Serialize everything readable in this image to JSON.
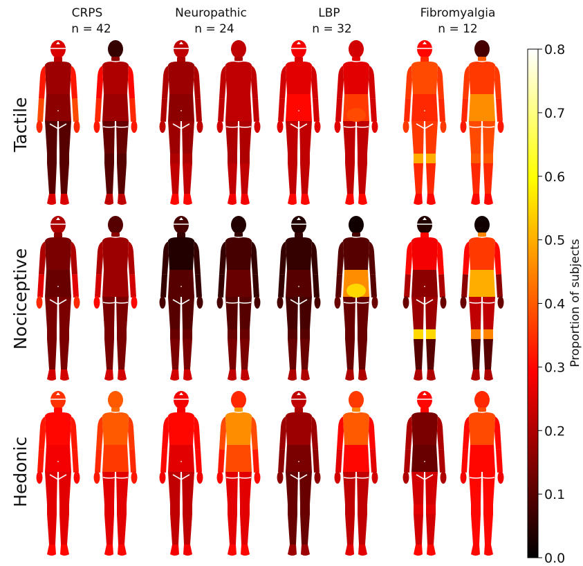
{
  "chart_data": {
    "type": "heatmap",
    "columns": [
      {
        "name": "CRPS",
        "n_label": "n = 42"
      },
      {
        "name": "Neuropathic",
        "n_label": "n = 24"
      },
      {
        "name": "LBP",
        "n_label": "n = 32"
      },
      {
        "name": "Fibromyalgia",
        "n_label": "n = 12"
      }
    ],
    "rows": [
      "Tactile",
      "Nociceptive",
      "Hedonic"
    ],
    "views": [
      "front",
      "back"
    ],
    "regions": [
      "head",
      "neck",
      "upper_torso",
      "lower_torso",
      "upper_arm",
      "forearm",
      "hand",
      "thigh",
      "knee",
      "shin",
      "foot"
    ],
    "maps": {
      "Tactile": {
        "CRPS": {
          "front": {
            "head": 0.25,
            "neck": 0.22,
            "upper_torso": 0.18,
            "lower_torso": 0.16,
            "upper_arm": 0.32,
            "forearm": 0.38,
            "hand": 0.34,
            "thigh": 0.1,
            "knee": 0.1,
            "shin": 0.1,
            "foot": 0.25
          },
          "back": {
            "head": 0.06,
            "neck": 0.16,
            "upper_torso": 0.2,
            "lower_torso": 0.18,
            "upper_arm": 0.3,
            "forearm": 0.34,
            "hand": 0.32,
            "thigh": 0.12,
            "knee": 0.1,
            "shin": 0.1,
            "foot": 0.22
          }
        },
        "Neuropathic": {
          "front": {
            "head": 0.22,
            "neck": 0.2,
            "upper_torso": 0.18,
            "lower_torso": 0.16,
            "upper_arm": 0.2,
            "forearm": 0.2,
            "hand": 0.22,
            "thigh": 0.18,
            "knee": 0.2,
            "shin": 0.22,
            "foot": 0.3
          },
          "back": {
            "head": 0.22,
            "neck": 0.2,
            "upper_torso": 0.22,
            "lower_torso": 0.22,
            "upper_arm": 0.22,
            "forearm": 0.22,
            "hand": 0.24,
            "thigh": 0.2,
            "knee": 0.2,
            "shin": 0.22,
            "foot": 0.28
          }
        },
        "LBP": {
          "front": {
            "head": 0.28,
            "neck": 0.25,
            "upper_torso": 0.26,
            "lower_torso": 0.3,
            "upper_arm": 0.24,
            "forearm": 0.24,
            "hand": 0.26,
            "thigh": 0.22,
            "knee": 0.22,
            "shin": 0.22,
            "foot": 0.3
          },
          "back": {
            "head": 0.24,
            "neck": 0.26,
            "upper_torso": 0.26,
            "lower_torso": 0.36,
            "upper_arm": 0.24,
            "forearm": 0.24,
            "hand": 0.26,
            "thigh": 0.22,
            "knee": 0.22,
            "shin": 0.22,
            "foot": 0.3
          },
          "back_spot": {
            "lower_torso": 0.38
          }
        },
        "Fibromyalgia": {
          "front": {
            "head": 0.3,
            "neck": 0.34,
            "upper_torso": 0.38,
            "lower_torso": 0.34,
            "upper_arm": 0.36,
            "forearm": 0.34,
            "hand": 0.36,
            "thigh": 0.36,
            "knee": 0.5,
            "shin": 0.34,
            "foot": 0.3
          },
          "back": {
            "head": 0.08,
            "neck": 0.4,
            "upper_torso": 0.36,
            "lower_torso": 0.46,
            "upper_arm": 0.36,
            "forearm": 0.34,
            "hand": 0.32,
            "thigh": 0.38,
            "knee": 0.4,
            "shin": 0.34,
            "foot": 0.3
          }
        }
      },
      "Nociceptive": {
        "CRPS": {
          "front": {
            "head": 0.2,
            "neck": 0.16,
            "upper_torso": 0.14,
            "lower_torso": 0.12,
            "upper_arm": 0.2,
            "forearm": 0.26,
            "hand": 0.34,
            "thigh": 0.14,
            "knee": 0.14,
            "shin": 0.14,
            "foot": 0.24
          },
          "back": {
            "head": 0.1,
            "neck": 0.16,
            "upper_torso": 0.18,
            "lower_torso": 0.18,
            "upper_arm": 0.2,
            "forearm": 0.24,
            "hand": 0.3,
            "thigh": 0.14,
            "knee": 0.14,
            "shin": 0.14,
            "foot": 0.24
          }
        },
        "Neuropathic": {
          "front": {
            "head": 0.08,
            "neck": 0.06,
            "upper_torso": 0.04,
            "lower_torso": 0.1,
            "upper_arm": 0.06,
            "forearm": 0.06,
            "hand": 0.08,
            "thigh": 0.1,
            "knee": 0.12,
            "shin": 0.14,
            "foot": 0.24
          },
          "back": {
            "head": 0.04,
            "neck": 0.06,
            "upper_torso": 0.08,
            "lower_torso": 0.12,
            "upper_arm": 0.06,
            "forearm": 0.06,
            "hand": 0.08,
            "thigh": 0.1,
            "knee": 0.12,
            "shin": 0.14,
            "foot": 0.22
          }
        },
        "LBP": {
          "front": {
            "head": 0.04,
            "neck": 0.06,
            "upper_torso": 0.06,
            "lower_torso": 0.1,
            "upper_arm": 0.06,
            "forearm": 0.06,
            "hand": 0.08,
            "thigh": 0.08,
            "knee": 0.1,
            "shin": 0.12,
            "foot": 0.2
          },
          "back": {
            "head": 0.02,
            "neck": 0.08,
            "upper_torso": 0.1,
            "lower_torso": 0.46,
            "upper_arm": 0.1,
            "forearm": 0.1,
            "hand": 0.12,
            "thigh": 0.12,
            "knee": 0.12,
            "shin": 0.12,
            "foot": 0.2
          },
          "back_spot": {
            "lower_torso": 0.55
          }
        },
        "Fibromyalgia": {
          "front": {
            "head": 0.04,
            "neck": 0.3,
            "upper_torso": 0.28,
            "lower_torso": 0.16,
            "upper_arm": 0.3,
            "forearm": 0.2,
            "hand": 0.12,
            "thigh": 0.18,
            "knee": 0.55,
            "shin": 0.1,
            "foot": 0.2
          },
          "back": {
            "head": 0.02,
            "neck": 0.45,
            "upper_torso": 0.36,
            "lower_torso": 0.5,
            "upper_arm": 0.3,
            "forearm": 0.16,
            "hand": 0.12,
            "thigh": 0.22,
            "knee": 0.45,
            "shin": 0.1,
            "foot": 0.2
          }
        }
      },
      "Hedonic": {
        "CRPS": {
          "front": {
            "head": 0.35,
            "neck": 0.3,
            "upper_torso": 0.3,
            "lower_torso": 0.28,
            "upper_arm": 0.32,
            "forearm": 0.32,
            "hand": 0.3,
            "thigh": 0.26,
            "knee": 0.26,
            "shin": 0.26,
            "foot": 0.3
          },
          "back": {
            "head": 0.4,
            "neck": 0.42,
            "upper_torso": 0.4,
            "lower_torso": 0.36,
            "upper_arm": 0.36,
            "forearm": 0.34,
            "hand": 0.32,
            "thigh": 0.26,
            "knee": 0.26,
            "shin": 0.26,
            "foot": 0.3
          }
        },
        "Neuropathic": {
          "front": {
            "head": 0.28,
            "neck": 0.28,
            "upper_torso": 0.3,
            "lower_torso": 0.26,
            "upper_arm": 0.3,
            "forearm": 0.3,
            "hand": 0.28,
            "thigh": 0.22,
            "knee": 0.22,
            "shin": 0.22,
            "foot": 0.28
          },
          "back": {
            "head": 0.34,
            "neck": 0.48,
            "upper_torso": 0.46,
            "lower_torso": 0.38,
            "upper_arm": 0.38,
            "forearm": 0.32,
            "hand": 0.3,
            "thigh": 0.26,
            "knee": 0.26,
            "shin": 0.26,
            "foot": 0.3
          }
        },
        "LBP": {
          "front": {
            "head": 0.22,
            "neck": 0.2,
            "upper_torso": 0.18,
            "lower_torso": 0.14,
            "upper_arm": 0.18,
            "forearm": 0.16,
            "hand": 0.16,
            "thigh": 0.12,
            "knee": 0.12,
            "shin": 0.12,
            "foot": 0.18
          },
          "back": {
            "head": 0.36,
            "neck": 0.45,
            "upper_torso": 0.4,
            "lower_torso": 0.3,
            "upper_arm": 0.3,
            "forearm": 0.26,
            "hand": 0.24,
            "thigh": 0.22,
            "knee": 0.22,
            "shin": 0.22,
            "foot": 0.26
          }
        },
        "Fibromyalgia": {
          "front": {
            "head": 0.3,
            "neck": 0.3,
            "upper_torso": 0.14,
            "lower_torso": 0.12,
            "upper_arm": 0.2,
            "forearm": 0.2,
            "hand": 0.2,
            "thigh": 0.24,
            "knee": 0.26,
            "shin": 0.24,
            "foot": 0.3
          },
          "back": {
            "head": 0.34,
            "neck": 0.38,
            "upper_torso": 0.38,
            "lower_torso": 0.3,
            "upper_arm": 0.3,
            "forearm": 0.3,
            "hand": 0.28,
            "thigh": 0.3,
            "knee": 0.3,
            "shin": 0.3,
            "foot": 0.3
          }
        }
      }
    },
    "colorbar": {
      "label": "Proportion of subjects",
      "min": 0.0,
      "max": 0.8,
      "ticks": [
        "0.0",
        "0.1",
        "0.2",
        "0.3",
        "0.4",
        "0.5",
        "0.6",
        "0.7",
        "0.8"
      ],
      "colormap": "hot"
    }
  }
}
